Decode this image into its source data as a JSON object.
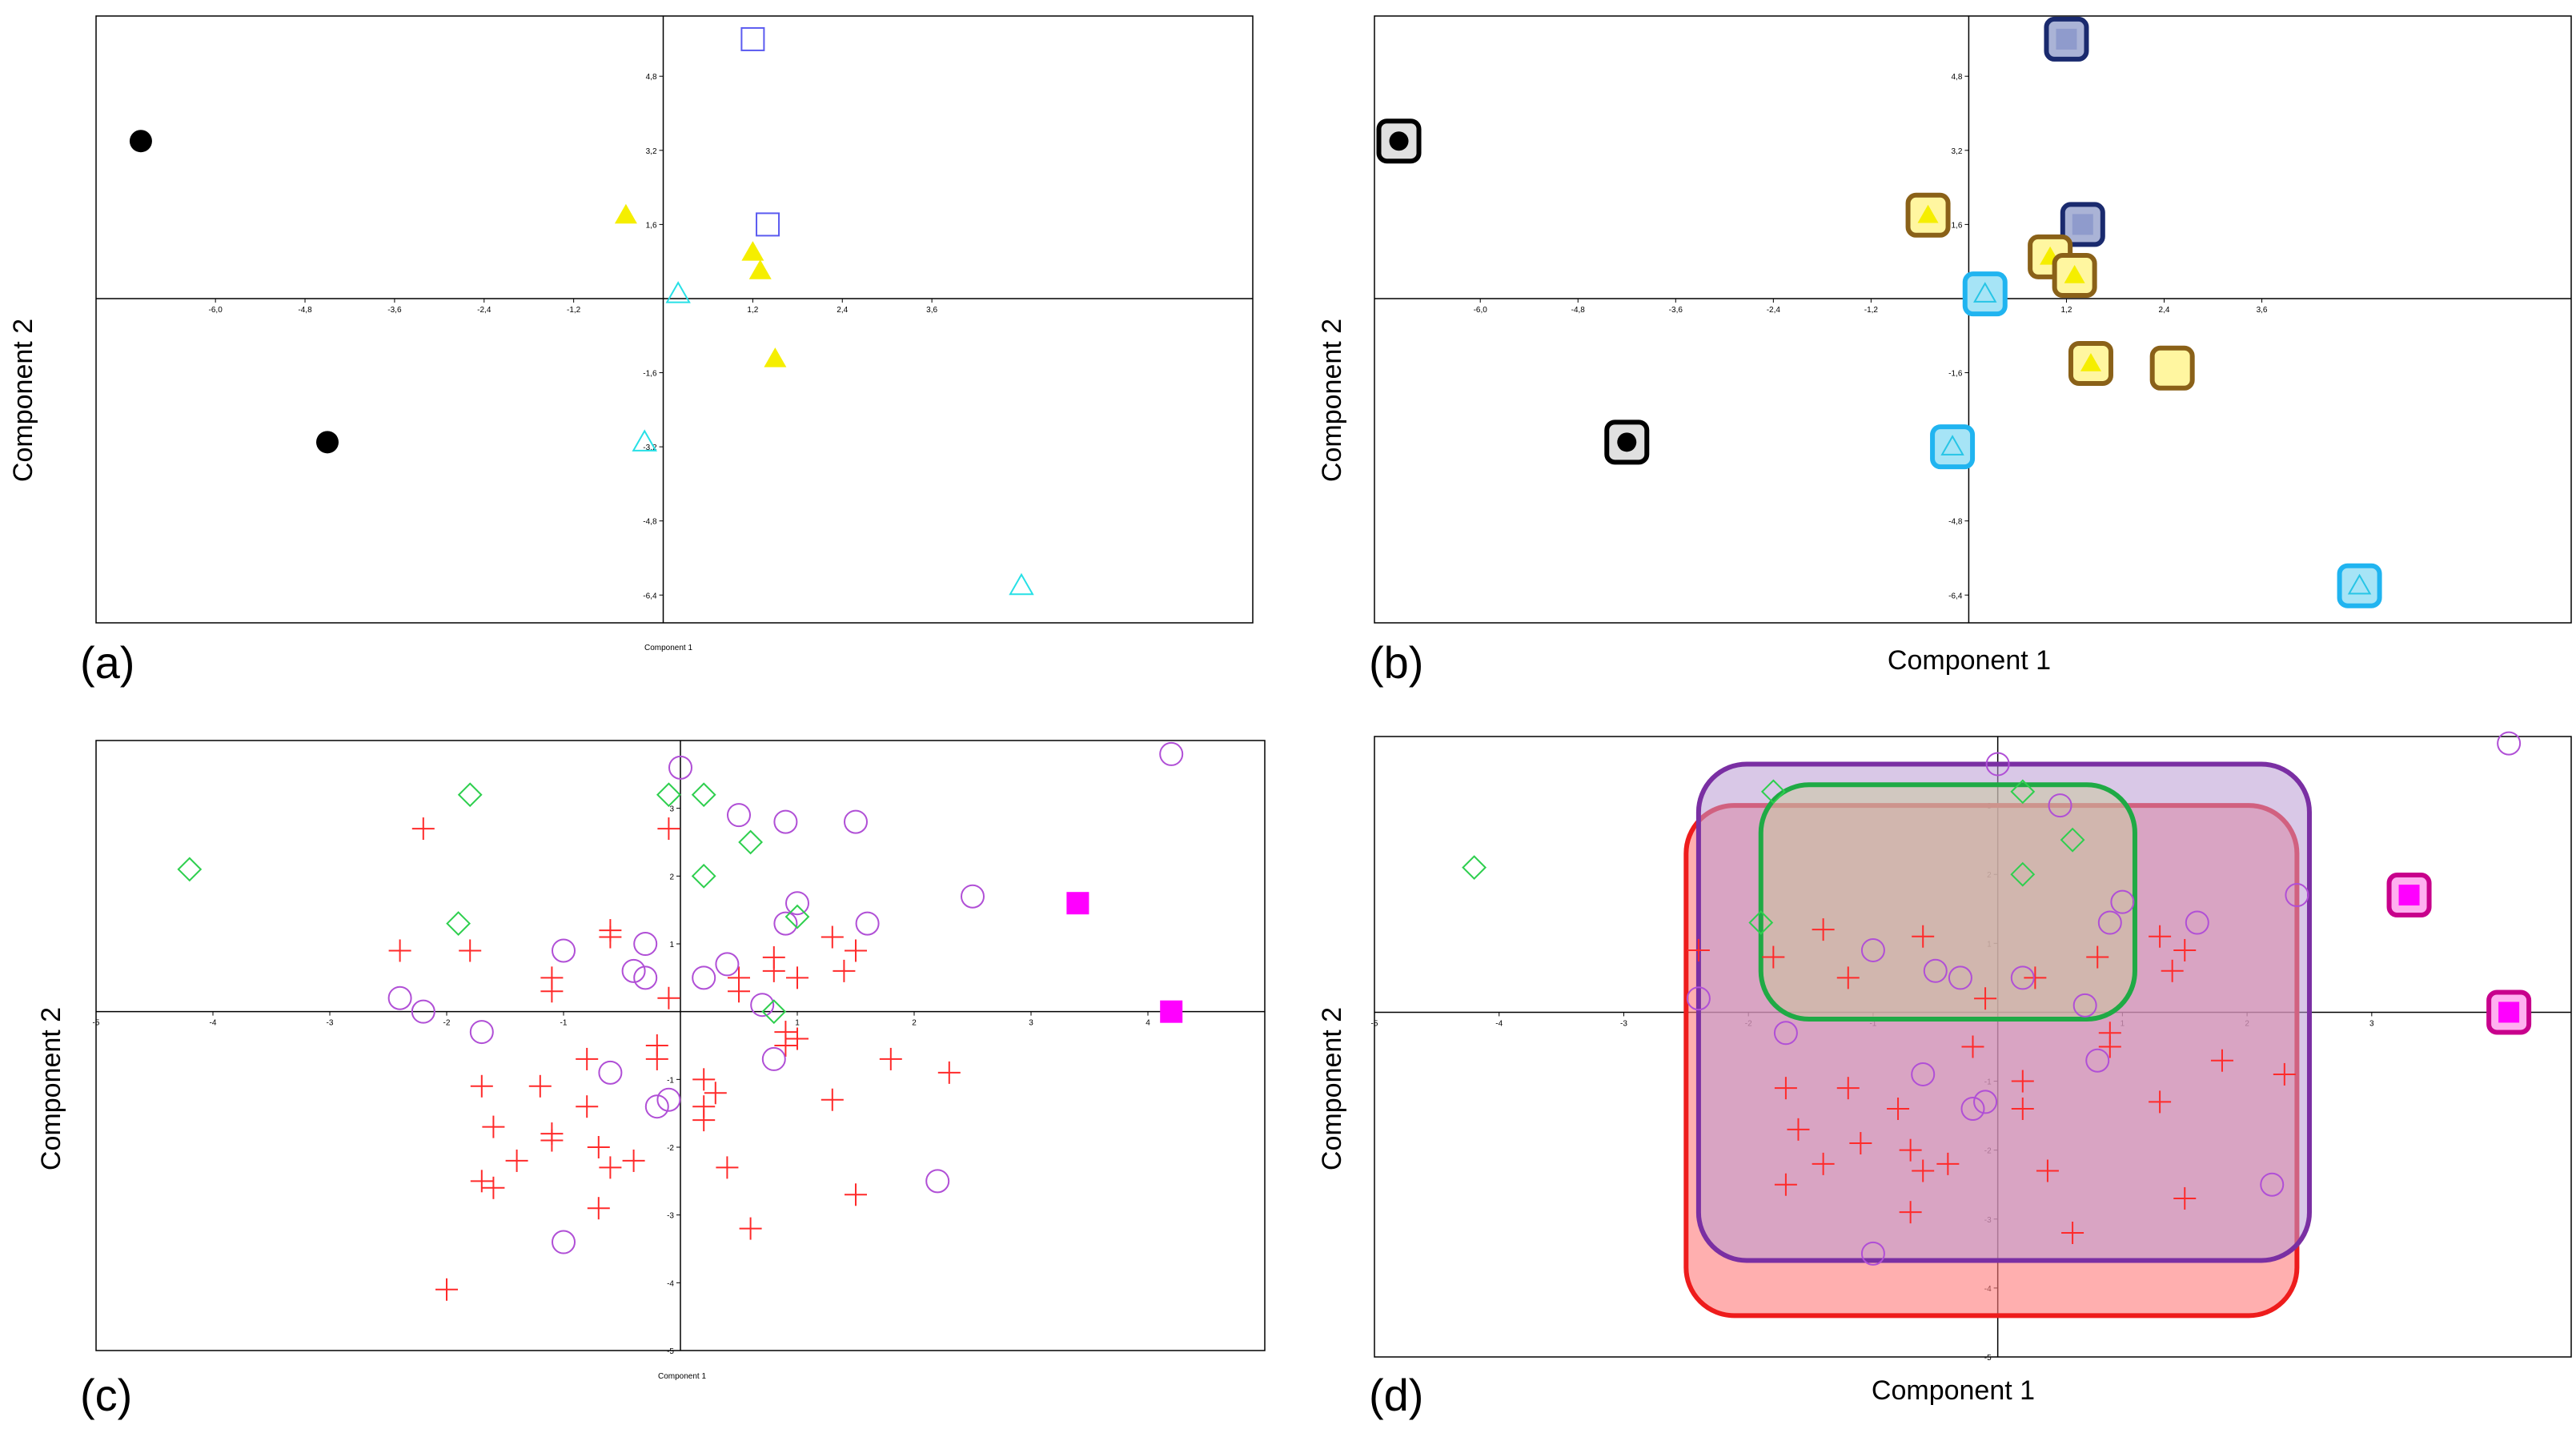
{
  "figure": {
    "panel_labels": [
      "(a)",
      "(b)",
      "(c)",
      "(d)"
    ]
  },
  "chart_data": [
    {
      "panel": "(a)",
      "type": "scatter",
      "xlabel": "Component 1",
      "ylabel": "Component 2",
      "xlim": [
        -7.6,
        7.9
      ],
      "ylim": [
        -7.0,
        6.1
      ],
      "xticks": [
        -6.0,
        -4.8,
        -3.6,
        -2.4,
        -1.2,
        1.2,
        2.4,
        3.6
      ],
      "yticks": [
        4.8,
        3.2,
        1.6,
        -1.6,
        -3.2,
        -4.8,
        -6.4
      ],
      "xtick_labels": [
        "-6,0",
        "-4,8",
        "-3,6",
        "-2,4",
        "-1,2",
        "1,2",
        "2,4",
        "3,6"
      ],
      "ytick_labels": [
        "4,8",
        "3,2",
        "1,6",
        "-1,6",
        "-3,2",
        "-4,8",
        "-6,4"
      ],
      "series": [
        {
          "marker": "filled-circle",
          "color": "#000000",
          "points": [
            [
              -7.0,
              3.4
            ],
            [
              -4.5,
              -3.1
            ]
          ]
        },
        {
          "marker": "filled-triangle",
          "color": "#f5ee00",
          "points": [
            [
              -0.5,
              1.8
            ],
            [
              1.2,
              1.0
            ],
            [
              1.3,
              0.6
            ],
            [
              1.5,
              -1.3
            ]
          ]
        },
        {
          "marker": "open-square",
          "color": "#5b5bf0",
          "points": [
            [
              1.2,
              5.6
            ],
            [
              1.4,
              1.6
            ]
          ]
        },
        {
          "marker": "open-triangle",
          "color": "#27e0e6",
          "points": [
            [
              0.2,
              0.1
            ],
            [
              -0.25,
              -3.1
            ],
            [
              4.8,
              -6.2
            ]
          ]
        }
      ]
    },
    {
      "panel": "(b)",
      "type": "scatter",
      "xlabel": "Component 1",
      "ylabel": "Component 2",
      "xlim": [
        -7.3,
        7.4
      ],
      "ylim": [
        -7.0,
        6.1
      ],
      "xticks": [
        -6.0,
        -4.8,
        -3.6,
        -2.4,
        -1.2,
        1.2,
        2.4,
        3.6
      ],
      "yticks": [
        4.8,
        3.2,
        1.6,
        -1.6,
        -3.2,
        -4.8,
        -6.4
      ],
      "xtick_labels": [
        "-6,0",
        "-4,8",
        "-3,6",
        "-2,4",
        "-1,2",
        "1,2",
        "2,4",
        "3,6"
      ],
      "ytick_labels": [
        "4,8",
        "3,2",
        "1,6",
        "-1,6",
        "-3,2",
        "-4,8",
        "-6,4"
      ],
      "highlighted_points": [
        {
          "marker": "filled-circle",
          "box": "#000000",
          "fill": "#e0e0e0",
          "x": -7.0,
          "y": 3.4
        },
        {
          "marker": "filled-circle",
          "box": "#000000",
          "fill": "#e0e0e0",
          "x": -4.2,
          "y": -3.1
        },
        {
          "marker": "filled-square",
          "box": "#1a2a6e",
          "fill": "#aab3d6",
          "x": 1.2,
          "y": 5.6
        },
        {
          "marker": "filled-square",
          "box": "#1a2a6e",
          "fill": "#aab3d6",
          "x": 1.4,
          "y": 1.6
        },
        {
          "marker": "filled-triangle",
          "box": "#8a6118",
          "fill": "#fff6a0",
          "x": -0.5,
          "y": 1.8
        },
        {
          "marker": "filled-triangle",
          "box": "#8a6118",
          "fill": "#fff6a0",
          "x": 1.0,
          "y": 0.9
        },
        {
          "marker": "filled-triangle",
          "box": "#8a6118",
          "fill": "#fff6a0",
          "x": 1.3,
          "y": 0.5
        },
        {
          "marker": "filled-triangle",
          "box": "#8a6118",
          "fill": "#fff6a0",
          "x": 1.5,
          "y": -1.4
        },
        {
          "marker": "none",
          "box": "#8a6118",
          "fill": "#fff6a0",
          "x": 2.5,
          "y": -1.5
        },
        {
          "marker": "open-triangle",
          "box": "#20b4f0",
          "fill": "#a6e4f6",
          "x": 0.2,
          "y": 0.1
        },
        {
          "marker": "open-triangle",
          "box": "#20b4f0",
          "fill": "#a6e4f6",
          "x": -0.2,
          "y": -3.2
        },
        {
          "marker": "open-triangle",
          "box": "#20b4f0",
          "fill": "#a6e4f6",
          "x": 4.8,
          "y": -6.2
        }
      ]
    },
    {
      "panel": "(c)",
      "type": "scatter",
      "xlabel": "Component 1",
      "ylabel": "Component 2",
      "xlim": [
        -5.0,
        5.0
      ],
      "ylim": [
        -5.0,
        4.0
      ],
      "xticks": [
        -5,
        -4,
        -3,
        -2,
        -1,
        1,
        2,
        3,
        4
      ],
      "yticks": [
        3,
        2,
        1,
        -1,
        -2,
        -3,
        -4,
        -5
      ],
      "xtick_labels": [
        "-5",
        "-4",
        "-3",
        "-2",
        "-1",
        "1",
        "2",
        "3",
        "4"
      ],
      "ytick_labels": [
        "3",
        "2",
        "1",
        "-1",
        "-2",
        "-3",
        "-4",
        "-5"
      ],
      "series": [
        {
          "marker": "plus",
          "color": "#ff2a2a",
          "points": [
            [
              -2.2,
              2.7
            ],
            [
              -2.4,
              0.9
            ],
            [
              -1.8,
              0.9
            ],
            [
              -1.1,
              0.5
            ],
            [
              -1.1,
              0.3
            ],
            [
              -0.6,
              1.2
            ],
            [
              -0.6,
              1.1
            ],
            [
              -0.1,
              2.7
            ],
            [
              -0.1,
              0.2
            ],
            [
              -0.2,
              -0.5
            ],
            [
              -0.2,
              -0.7
            ],
            [
              0.2,
              -1.0
            ],
            [
              0.3,
              -1.2
            ],
            [
              0.2,
              -1.4
            ],
            [
              0.2,
              -1.6
            ],
            [
              0.5,
              0.5
            ],
            [
              0.5,
              0.3
            ],
            [
              0.8,
              0.8
            ],
            [
              1.0,
              0.5
            ],
            [
              1.3,
              1.1
            ],
            [
              1.5,
              0.9
            ],
            [
              1.4,
              0.6
            ],
            [
              0.9,
              -0.3
            ],
            [
              1.0,
              -0.4
            ],
            [
              0.9,
              -0.5
            ],
            [
              -1.7,
              -1.1
            ],
            [
              -1.6,
              -1.7
            ],
            [
              -1.2,
              -1.1
            ],
            [
              -1.1,
              -1.8
            ],
            [
              -1.1,
              -1.9
            ],
            [
              -0.8,
              -0.7
            ],
            [
              -0.8,
              -1.4
            ],
            [
              -0.7,
              -2.0
            ],
            [
              -0.6,
              -2.3
            ],
            [
              -0.4,
              -2.2
            ],
            [
              -1.4,
              -2.2
            ],
            [
              -1.7,
              -2.5
            ],
            [
              -1.6,
              -2.6
            ],
            [
              -0.7,
              -2.9
            ],
            [
              0.4,
              -2.3
            ],
            [
              0.6,
              -3.2
            ],
            [
              1.3,
              -1.3
            ],
            [
              1.8,
              -0.7
            ],
            [
              2.3,
              -0.9
            ],
            [
              1.5,
              -2.7
            ],
            [
              -2.0,
              -4.1
            ],
            [
              0.8,
              0.6
            ]
          ]
        },
        {
          "marker": "open-circle",
          "color": "#b04fd6",
          "points": [
            [
              4.2,
              3.8
            ],
            [
              -0.0,
              3.6
            ],
            [
              0.5,
              2.9
            ],
            [
              0.9,
              2.8
            ],
            [
              1.5,
              2.8
            ],
            [
              2.5,
              1.7
            ],
            [
              1.0,
              1.6
            ],
            [
              0.9,
              1.3
            ],
            [
              1.6,
              1.3
            ],
            [
              -1.0,
              0.9
            ],
            [
              -0.3,
              1.0
            ],
            [
              -0.4,
              0.6
            ],
            [
              -0.3,
              0.5
            ],
            [
              0.2,
              0.5
            ],
            [
              0.4,
              0.7
            ],
            [
              -2.4,
              0.2
            ],
            [
              -2.2,
              0.0
            ],
            [
              -1.7,
              -0.3
            ],
            [
              0.7,
              0.1
            ],
            [
              0.8,
              -0.7
            ],
            [
              -0.6,
              -0.9
            ],
            [
              -0.2,
              -1.4
            ],
            [
              -0.1,
              -1.3
            ],
            [
              2.2,
              -2.5
            ],
            [
              -1.0,
              -3.4
            ]
          ]
        },
        {
          "marker": "open-diamond",
          "color": "#2ecf4e",
          "points": [
            [
              -4.2,
              2.1
            ],
            [
              -1.8,
              3.2
            ],
            [
              -0.1,
              3.2
            ],
            [
              0.2,
              3.2
            ],
            [
              0.6,
              2.5
            ],
            [
              0.2,
              2.0
            ],
            [
              1.0,
              1.4
            ],
            [
              -1.9,
              1.3
            ],
            [
              0.8,
              0.0
            ]
          ]
        },
        {
          "marker": "filled-square",
          "color": "#ff00ff",
          "points": [
            [
              3.4,
              1.6
            ],
            [
              4.2,
              0.0
            ]
          ]
        }
      ]
    },
    {
      "panel": "(d)",
      "type": "scatter",
      "xlabel": "Component 1",
      "ylabel": "Component 2",
      "xlim": [
        -5.0,
        4.6
      ],
      "ylim": [
        -5.0,
        4.0
      ],
      "xticks": [
        -5,
        -4,
        -3,
        -2,
        -1,
        1,
        2,
        3,
        4
      ],
      "yticks": [
        3,
        2,
        1,
        -1,
        -2,
        -3,
        -4,
        -5
      ],
      "xtick_labels": [
        "-5",
        "-4",
        "-3",
        "-2",
        "-1",
        "1",
        "2",
        "3",
        "4"
      ],
      "ytick_labels": [
        "3",
        "2",
        "1",
        "-1",
        "-2",
        "-3",
        "-4",
        "-5"
      ],
      "regions": [
        {
          "name": "red",
          "stroke": "#ee1c1c",
          "fill": "#ff7a7a",
          "opacity": 0.6,
          "x": [
            -2.5,
            2.4
          ],
          "y": [
            -4.4,
            3.0
          ]
        },
        {
          "name": "purple",
          "stroke": "#7a2fa3",
          "fill": "#b99ad3",
          "opacity": 0.55,
          "x": [
            -2.4,
            2.5
          ],
          "y": [
            -3.6,
            3.6
          ]
        },
        {
          "name": "green",
          "stroke": "#1faa45",
          "fill": "#c9c89a",
          "opacity": 0.5,
          "x": [
            -1.9,
            1.1
          ],
          "y": [
            -0.1,
            3.3
          ]
        }
      ],
      "series": [
        {
          "marker": "plus",
          "color": "#ff2a2a",
          "points": [
            [
              -1.4,
              1.2
            ],
            [
              -2.4,
              0.9
            ],
            [
              -1.8,
              0.8
            ],
            [
              -1.2,
              0.5
            ],
            [
              -0.6,
              1.1
            ],
            [
              -0.1,
              0.2
            ],
            [
              -0.2,
              -0.5
            ],
            [
              0.2,
              -1.0
            ],
            [
              0.2,
              -1.4
            ],
            [
              0.3,
              0.5
            ],
            [
              0.8,
              0.8
            ],
            [
              1.3,
              1.1
            ],
            [
              1.5,
              0.9
            ],
            [
              1.4,
              0.6
            ],
            [
              0.9,
              -0.3
            ],
            [
              0.9,
              -0.5
            ],
            [
              -1.7,
              -1.1
            ],
            [
              -1.6,
              -1.7
            ],
            [
              -1.2,
              -1.1
            ],
            [
              -1.1,
              -1.9
            ],
            [
              -0.8,
              -1.4
            ],
            [
              -0.7,
              -2.0
            ],
            [
              -0.6,
              -2.3
            ],
            [
              -0.4,
              -2.2
            ],
            [
              -1.4,
              -2.2
            ],
            [
              -1.7,
              -2.5
            ],
            [
              -0.7,
              -2.9
            ],
            [
              0.4,
              -2.3
            ],
            [
              0.6,
              -3.2
            ],
            [
              1.3,
              -1.3
            ],
            [
              1.8,
              -0.7
            ],
            [
              2.3,
              -0.9
            ],
            [
              1.5,
              -2.7
            ]
          ]
        },
        {
          "marker": "open-circle",
          "color": "#b04fd6",
          "points": [
            [
              4.1,
              3.9
            ],
            [
              -0.0,
              3.6
            ],
            [
              0.5,
              3.0
            ],
            [
              1.0,
              1.6
            ],
            [
              0.9,
              1.3
            ],
            [
              1.6,
              1.3
            ],
            [
              2.4,
              1.7
            ],
            [
              -1.0,
              0.9
            ],
            [
              -0.5,
              0.6
            ],
            [
              -0.3,
              0.5
            ],
            [
              0.2,
              0.5
            ],
            [
              -2.4,
              0.2
            ],
            [
              -1.7,
              -0.3
            ],
            [
              0.7,
              0.1
            ],
            [
              0.8,
              -0.7
            ],
            [
              -0.6,
              -0.9
            ],
            [
              -0.2,
              -1.4
            ],
            [
              -0.1,
              -1.3
            ],
            [
              2.2,
              -2.5
            ],
            [
              -1.0,
              -3.5
            ]
          ]
        },
        {
          "marker": "open-diamond",
          "color": "#2ecf4e",
          "points": [
            [
              -4.2,
              2.1
            ],
            [
              -1.8,
              3.2
            ],
            [
              0.2,
              3.2
            ],
            [
              0.6,
              2.5
            ],
            [
              0.2,
              2.0
            ],
            [
              -1.9,
              1.3
            ]
          ]
        }
      ],
      "highlighted_points": [
        {
          "marker": "filled-square",
          "box": "#c8008c",
          "fill": "#ffb0f0",
          "x": 3.3,
          "y": 1.7
        },
        {
          "marker": "filled-square",
          "box": "#c8008c",
          "fill": "#ffb0f0",
          "x": 4.1,
          "y": 0.0
        }
      ]
    }
  ]
}
